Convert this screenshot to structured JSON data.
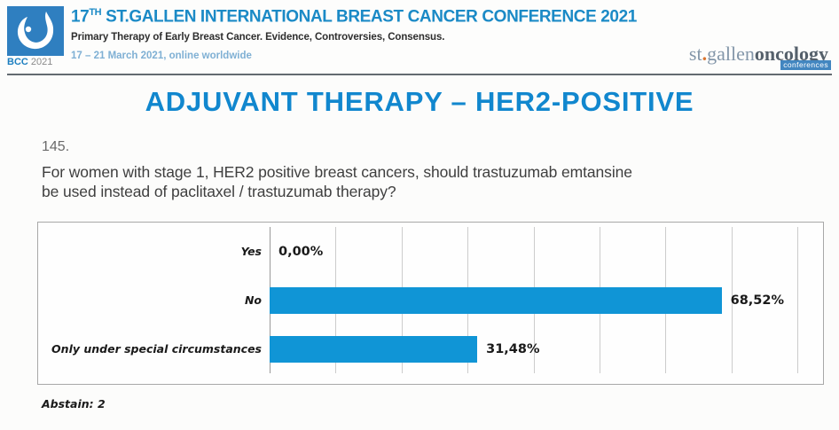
{
  "header": {
    "logo": {
      "bcc": "BCC",
      "year": "2021"
    },
    "title_num": "17",
    "title_sup": "TH",
    "title_rest": " ST.GALLEN INTERNATIONAL BREAST CANCER CONFERENCE 2021",
    "subtitle": "Primary Therapy of Early Breast Cancer. Evidence, Controversies, Consensus.",
    "date_line": "17 – 21 March 2021, online worldwide",
    "brand": {
      "st": "st",
      "dot": ".",
      "gallen": "gallen",
      "oncology": "oncology",
      "conferences": "conferences"
    }
  },
  "main": {
    "title": "ADJUVANT THERAPY – HER2-POSITIVE",
    "question_number": "145.",
    "question_lines": [
      "For women with stage 1, HER2 positive breast cancers, should trastuzumab emtansine",
      "be used instead of paclitaxel / trastuzumab therapy?"
    ],
    "abstain": "Abstain: 2"
  },
  "chart_data": {
    "type": "bar",
    "orientation": "horizontal",
    "title": "",
    "xlabel": "",
    "ylabel": "",
    "categories": [
      "Yes",
      "No",
      "Only under special circumstances"
    ],
    "values": [
      0,
      68.52,
      31.48
    ],
    "value_labels": [
      "0,00%",
      "68,52%",
      "31,48%"
    ],
    "xlim": [
      0,
      80
    ],
    "grid_interval": 10,
    "grid": true,
    "legend": false,
    "bar_color": "#1095d6"
  },
  "colors": {
    "accent_blue": "#1187ce",
    "bar_blue": "#1095d6",
    "date_blue": "#7fb0d4",
    "logo_blue": "#2f7fc0"
  }
}
